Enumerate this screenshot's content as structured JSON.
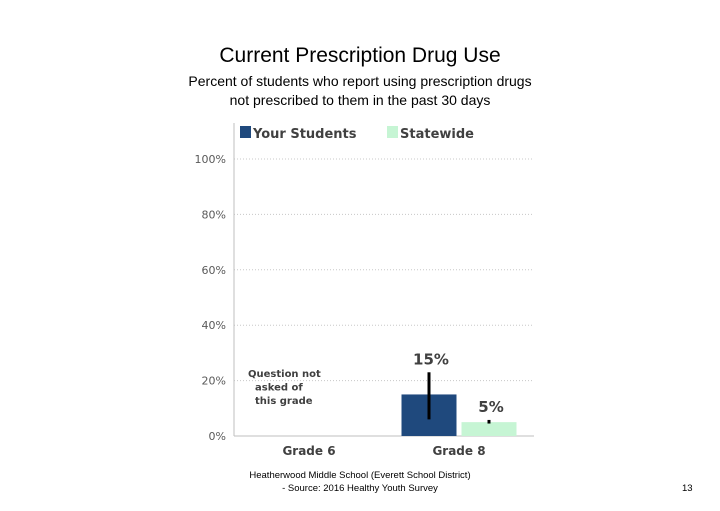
{
  "slide": {
    "title": "Current Prescription Drug Use",
    "subtitle_line1": "Percent of students who report using prescription drugs",
    "subtitle_line2": "not prescribed to them in the past 30 days",
    "footer_line1": "Heatherwood Middle School (Everett School District)",
    "footer_line2": "- Source: 2016 Healthy Youth Survey",
    "page_number": "13"
  },
  "chart_data": {
    "type": "bar",
    "title": "Current Prescription Drug Use",
    "categories": [
      "Grade 6",
      "Grade 8"
    ],
    "ylim": [
      0,
      100
    ],
    "yticks": [
      0,
      20,
      40,
      60,
      80,
      100
    ],
    "ytick_labels": [
      "0%",
      "20%",
      "40%",
      "60%",
      "80%",
      "100%"
    ],
    "grid": true,
    "legend_position": "top",
    "series": [
      {
        "name": "Your Students",
        "color": "#1f497d",
        "values": [
          null,
          15
        ],
        "labels": [
          "",
          "15%"
        ],
        "error_low": [
          null,
          6
        ],
        "error_high": [
          null,
          23
        ]
      },
      {
        "name": "Statewide",
        "color": "#c6f5d4",
        "values": [
          null,
          5
        ],
        "labels": [
          "",
          "5%"
        ],
        "error_low": [
          null,
          4.5
        ],
        "error_high": [
          null,
          5.8
        ]
      }
    ],
    "annotations": [
      {
        "category": "Grade 6",
        "lines": [
          "Question not",
          "asked of",
          "this grade"
        ]
      }
    ]
  }
}
